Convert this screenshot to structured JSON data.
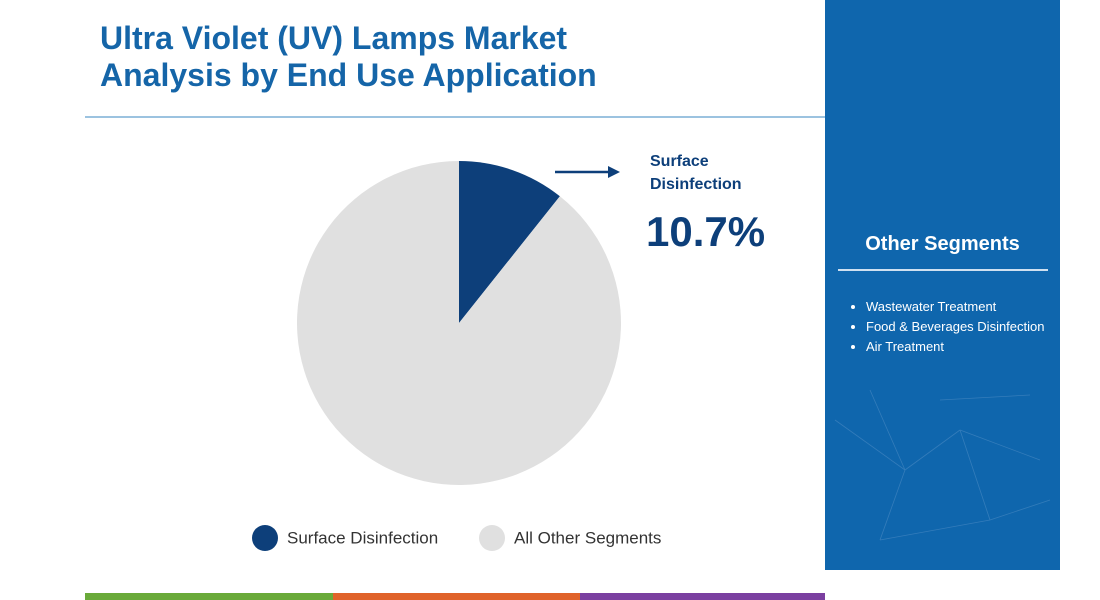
{
  "chart_data": {
    "type": "pie",
    "title": "Ultra Violet (UV) Lamps Market Analysis by End Use Application",
    "categories": [
      "Surface Disinfection",
      "All Other Segments"
    ],
    "values": [
      10.7,
      89.3
    ],
    "value_labels": [
      "10.7%",
      null
    ],
    "colors": [
      "#0d3f7a",
      "#e0e0e0"
    ]
  },
  "other_segments": {
    "title": "Other Segments",
    "items": [
      "Wastewater Treatment",
      "Food & Beverages Disinfection",
      "Air Treatment"
    ]
  }
}
